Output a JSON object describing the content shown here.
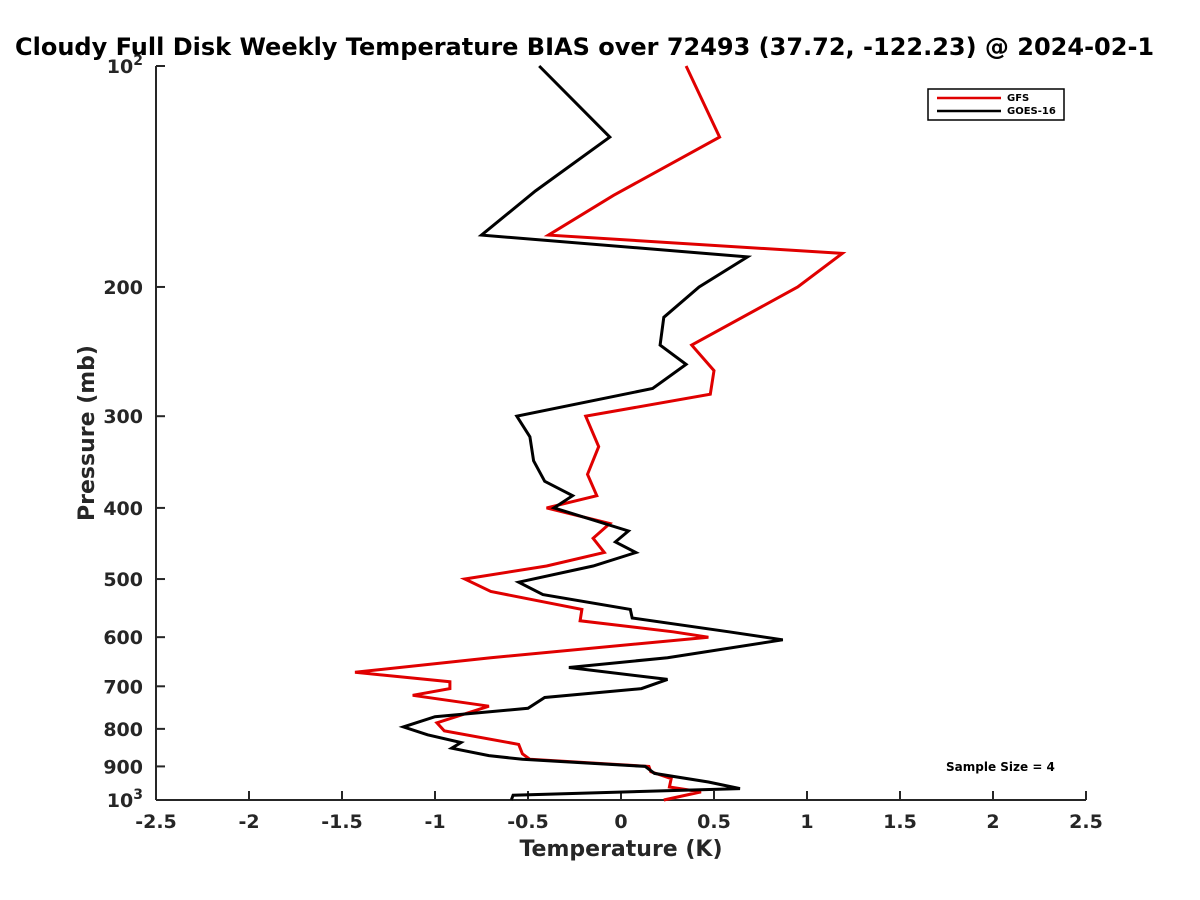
{
  "chart_data": {
    "type": "line",
    "title": "Cloudy Full Disk Weekly Temperature BIAS over 72493 (37.72, -122.23) @ 2024-02-1",
    "xlabel": "Temperature (K)",
    "ylabel": "Pressure (mb)",
    "xlim": [
      -2.5,
      2.5
    ],
    "ylim": [
      100,
      1000
    ],
    "y_scale": "log",
    "y_reversed": true,
    "grid": false,
    "legend_position": "top-right",
    "x_ticks": [
      "-2.5",
      "-2",
      "-1.5",
      "-1",
      "-0.5",
      "0",
      "0.5",
      "1",
      "1.5",
      "2",
      "2.5"
    ],
    "y_ticks": [
      {
        "value": 100,
        "base": "10",
        "exp": "2"
      },
      {
        "value": 200,
        "label": "200"
      },
      {
        "value": 300,
        "label": "300"
      },
      {
        "value": 400,
        "label": "400"
      },
      {
        "value": 500,
        "label": "500"
      },
      {
        "value": 600,
        "label": "600"
      },
      {
        "value": 700,
        "label": "700"
      },
      {
        "value": 800,
        "label": "800"
      },
      {
        "value": 900,
        "label": "900"
      },
      {
        "value": 1000,
        "base": "10",
        "exp": "3"
      }
    ],
    "annotation": "Sample Size = 4",
    "series": [
      {
        "name": "GFS",
        "color": "#e00000",
        "points": [
          [
            0.35,
            100
          ],
          [
            0.53,
            125
          ],
          [
            -0.04,
            150
          ],
          [
            -0.39,
            170
          ],
          [
            1.19,
            180
          ],
          [
            0.95,
            200
          ],
          [
            0.38,
            240
          ],
          [
            0.5,
            260
          ],
          [
            0.48,
            280
          ],
          [
            -0.19,
            300
          ],
          [
            -0.12,
            330
          ],
          [
            -0.18,
            360
          ],
          [
            -0.13,
            385
          ],
          [
            -0.4,
            400
          ],
          [
            -0.06,
            420
          ],
          [
            -0.15,
            440
          ],
          [
            -0.09,
            460
          ],
          [
            -0.4,
            480
          ],
          [
            -0.84,
            500
          ],
          [
            -0.7,
            520
          ],
          [
            -0.21,
            550
          ],
          [
            -0.22,
            570
          ],
          [
            0.28,
            590
          ],
          [
            0.47,
            600
          ],
          [
            -0.7,
            640
          ],
          [
            -1.43,
            670
          ],
          [
            -0.92,
            690
          ],
          [
            -0.92,
            705
          ],
          [
            -1.12,
            720
          ],
          [
            -0.71,
            745
          ],
          [
            -0.99,
            785
          ],
          [
            -0.95,
            805
          ],
          [
            -0.55,
            840
          ],
          [
            -0.53,
            865
          ],
          [
            -0.49,
            880
          ],
          [
            0.15,
            900
          ],
          [
            0.16,
            915
          ],
          [
            0.27,
            935
          ],
          [
            0.26,
            960
          ],
          [
            0.43,
            975
          ],
          [
            0.23,
            1000
          ]
        ]
      },
      {
        "name": "GOES-16",
        "color": "#000000",
        "points": [
          [
            -0.44,
            100
          ],
          [
            -0.06,
            125
          ],
          [
            -0.46,
            148
          ],
          [
            -0.75,
            170
          ],
          [
            0.68,
            182
          ],
          [
            0.42,
            200
          ],
          [
            0.23,
            220
          ],
          [
            0.21,
            240
          ],
          [
            0.35,
            255
          ],
          [
            0.17,
            275
          ],
          [
            -0.56,
            300
          ],
          [
            -0.49,
            320
          ],
          [
            -0.47,
            345
          ],
          [
            -0.41,
            368
          ],
          [
            -0.26,
            385
          ],
          [
            -0.36,
            400
          ],
          [
            0.04,
            430
          ],
          [
            -0.03,
            445
          ],
          [
            0.08,
            460
          ],
          [
            -0.15,
            480
          ],
          [
            -0.55,
            505
          ],
          [
            -0.42,
            525
          ],
          [
            0.05,
            550
          ],
          [
            0.06,
            565
          ],
          [
            0.58,
            590
          ],
          [
            0.87,
            605
          ],
          [
            0.25,
            640
          ],
          [
            -0.28,
            660
          ],
          [
            0.25,
            685
          ],
          [
            0.11,
            705
          ],
          [
            -0.41,
            725
          ],
          [
            -0.5,
            750
          ],
          [
            -1.0,
            770
          ],
          [
            -1.17,
            795
          ],
          [
            -1.04,
            815
          ],
          [
            -0.86,
            835
          ],
          [
            -0.91,
            850
          ],
          [
            -0.71,
            870
          ],
          [
            -0.53,
            880
          ],
          [
            0.13,
            900
          ],
          [
            0.18,
            920
          ],
          [
            0.47,
            945
          ],
          [
            0.64,
            965
          ],
          [
            -0.58,
            985
          ],
          [
            -0.59,
            1000
          ]
        ]
      }
    ]
  }
}
